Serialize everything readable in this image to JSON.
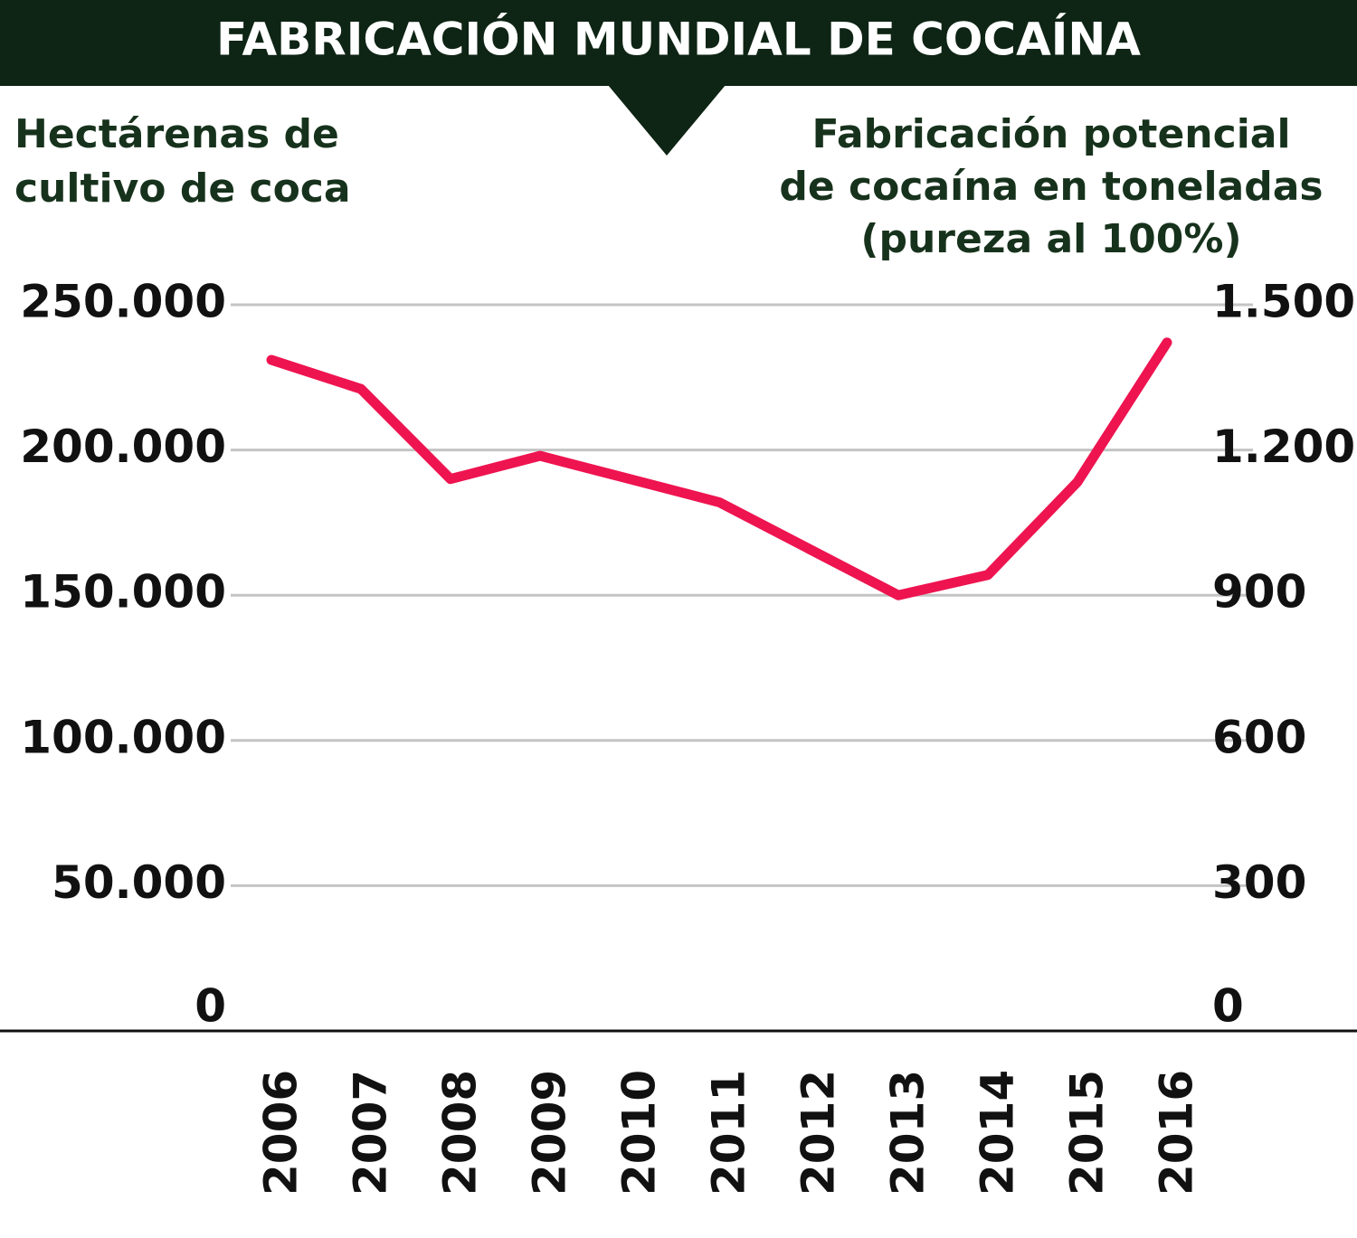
{
  "chart_data": {
    "type": "line",
    "title": "FABRICACIÓN MUNDIAL DE COCAÍNA",
    "y_label": [
      "Hectárenas de",
      "cultivo de coca"
    ],
    "y2_label": [
      "Fabricación potencial",
      "de cocaína en toneladas",
      "(pureza al 100%)"
    ],
    "categories": [
      "2006",
      "2007",
      "2008",
      "2009",
      "2010",
      "2011",
      "2012",
      "2013",
      "2014",
      "2015",
      "2016"
    ],
    "values": [
      231000,
      221000,
      190000,
      198000,
      190000,
      182000,
      166000,
      150000,
      157000,
      189000,
      237000
    ],
    "color": "#ee1450",
    "ylim": [
      0,
      250000
    ],
    "yticks": [
      0,
      {
        "value": 50000,
        "label": "50.000"
      },
      {
        "value": 100000,
        "label": "100.000"
      },
      {
        "value": 150000,
        "label": "150.000"
      },
      {
        "value": 200000,
        "label": "200.000"
      },
      {
        "value": 250000,
        "label": "250.000"
      }
    ],
    "y2lim": [
      0,
      1500
    ],
    "y2ticks": [
      0,
      300,
      600,
      900,
      {
        "value": 1200,
        "label": "1.200"
      },
      {
        "value": 1500,
        "label": "1.500"
      }
    ],
    "grid": true
  }
}
